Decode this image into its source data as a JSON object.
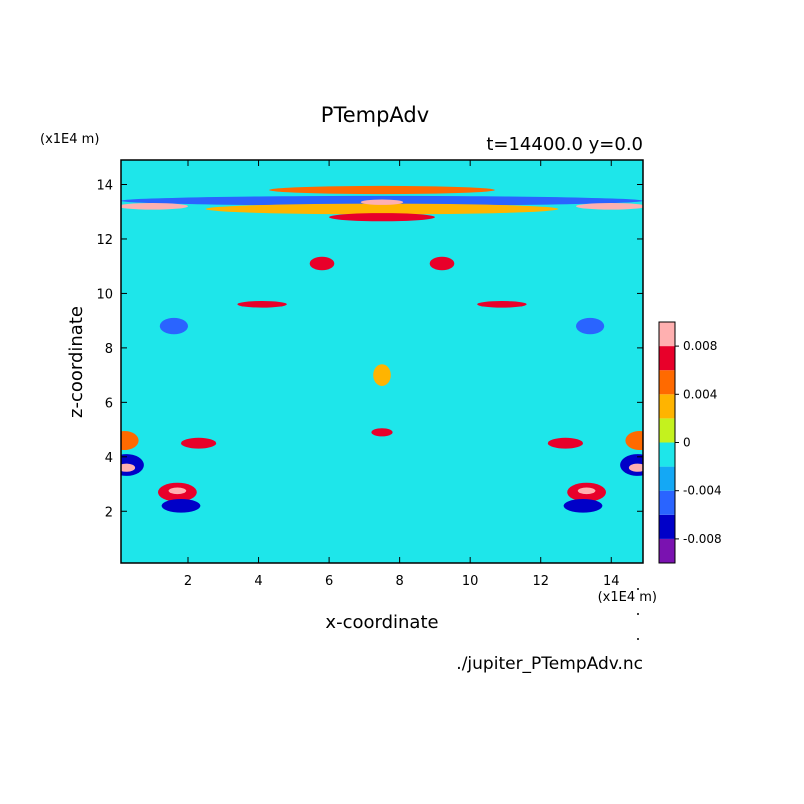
{
  "chart_data": {
    "type": "heatmap",
    "title": "PTempAdv",
    "subtitle": "t=14400.0 y=0.0",
    "xlabel": "x-coordinate",
    "ylabel": "z-coordinate",
    "x_unit": "(x1E4 m)",
    "y_unit": "(x1E4 m)",
    "xlim": [
      0.1,
      14.9
    ],
    "ylim": [
      0.1,
      14.9
    ],
    "x_ticks": [
      "2",
      "4",
      "6",
      "8",
      "10",
      "12",
      "14"
    ],
    "y_ticks": [
      "2",
      "4",
      "6",
      "8",
      "10",
      "12",
      "14"
    ],
    "colorbar": {
      "ticks": [
        "0.008",
        "0.004",
        "0",
        "-0.004",
        "-0.008"
      ],
      "tick_values": [
        0.008,
        0.004,
        0,
        -0.004,
        -0.008
      ],
      "range": [
        -0.01,
        0.01
      ],
      "levels": [
        {
          "from": -0.01,
          "to": -0.008,
          "color": "#7a12b0"
        },
        {
          "from": -0.008,
          "to": -0.006,
          "color": "#0000c8"
        },
        {
          "from": -0.006,
          "to": -0.004,
          "color": "#2a64ff"
        },
        {
          "from": -0.004,
          "to": -0.002,
          "color": "#14a8f5"
        },
        {
          "from": -0.002,
          "to": 0.0,
          "color": "#1ee6ea"
        },
        {
          "from": 0.0,
          "to": 0.002,
          "color": "#c4f21e"
        },
        {
          "from": 0.002,
          "to": 0.004,
          "color": "#ffb400"
        },
        {
          "from": 0.004,
          "to": 0.006,
          "color": "#ff6a00"
        },
        {
          "from": 0.006,
          "to": 0.008,
          "color": "#e8002a"
        },
        {
          "from": 0.008,
          "to": 0.01,
          "color": "#ffb0b0"
        }
      ]
    },
    "background_color": "#1ee6ea",
    "features": [
      {
        "x": 7.5,
        "z": 13.8,
        "rx": 3.2,
        "rz": 0.15,
        "value": 0.0045
      },
      {
        "x": 7.5,
        "z": 13.4,
        "rx": 7.4,
        "rz": 0.18,
        "value": -0.005
      },
      {
        "x": 7.5,
        "z": 13.1,
        "rx": 5.0,
        "rz": 0.2,
        "value": 0.003
      },
      {
        "x": 7.5,
        "z": 12.8,
        "rx": 1.5,
        "rz": 0.15,
        "value": 0.007
      },
      {
        "x": 7.5,
        "z": 13.35,
        "rx": 0.6,
        "rz": 0.1,
        "value": 0.009
      },
      {
        "x": 1.0,
        "z": 13.2,
        "rx": 1.0,
        "rz": 0.12,
        "value": 0.009
      },
      {
        "x": 14.0,
        "z": 13.2,
        "rx": 1.0,
        "rz": 0.12,
        "value": 0.009
      },
      {
        "x": 5.8,
        "z": 11.1,
        "rx": 0.35,
        "rz": 0.25,
        "value": 0.006
      },
      {
        "x": 9.2,
        "z": 11.1,
        "rx": 0.35,
        "rz": 0.25,
        "value": 0.006
      },
      {
        "x": 4.1,
        "z": 9.6,
        "rx": 0.7,
        "rz": 0.12,
        "value": 0.006
      },
      {
        "x": 10.9,
        "z": 9.6,
        "rx": 0.7,
        "rz": 0.12,
        "value": 0.006
      },
      {
        "x": 1.6,
        "z": 8.8,
        "rx": 0.4,
        "rz": 0.3,
        "value": -0.005
      },
      {
        "x": 13.4,
        "z": 8.8,
        "rx": 0.4,
        "rz": 0.3,
        "value": -0.005
      },
      {
        "x": 0.2,
        "z": 4.6,
        "rx": 0.4,
        "rz": 0.35,
        "value": 0.005
      },
      {
        "x": 14.8,
        "z": 4.6,
        "rx": 0.4,
        "rz": 0.35,
        "value": 0.005
      },
      {
        "x": 0.25,
        "z": 3.7,
        "rx": 0.5,
        "rz": 0.4,
        "value": -0.008
      },
      {
        "x": 14.75,
        "z": 3.7,
        "rx": 0.5,
        "rz": 0.4,
        "value": -0.008
      },
      {
        "x": 0.25,
        "z": 3.6,
        "rx": 0.25,
        "rz": 0.15,
        "value": 0.0095
      },
      {
        "x": 14.75,
        "z": 3.6,
        "rx": 0.25,
        "rz": 0.15,
        "value": 0.0095
      },
      {
        "x": 1.7,
        "z": 2.7,
        "rx": 0.55,
        "rz": 0.35,
        "value": 0.007
      },
      {
        "x": 13.3,
        "z": 2.7,
        "rx": 0.55,
        "rz": 0.35,
        "value": 0.007
      },
      {
        "x": 1.8,
        "z": 2.2,
        "rx": 0.55,
        "rz": 0.25,
        "value": -0.008
      },
      {
        "x": 13.2,
        "z": 2.2,
        "rx": 0.55,
        "rz": 0.25,
        "value": -0.008
      },
      {
        "x": 1.7,
        "z": 2.75,
        "rx": 0.25,
        "rz": 0.12,
        "value": 0.0095
      },
      {
        "x": 13.3,
        "z": 2.75,
        "rx": 0.25,
        "rz": 0.12,
        "value": 0.0095
      },
      {
        "x": 2.3,
        "z": 4.5,
        "rx": 0.5,
        "rz": 0.2,
        "value": 0.006
      },
      {
        "x": 12.7,
        "z": 4.5,
        "rx": 0.5,
        "rz": 0.2,
        "value": 0.006
      },
      {
        "x": 7.5,
        "z": 4.9,
        "rx": 0.3,
        "rz": 0.15,
        "value": 0.006
      },
      {
        "x": 7.5,
        "z": 7.0,
        "rx": 0.25,
        "rz": 0.4,
        "value": 0.003
      }
    ],
    "footer_path": "./jupiter_PTempAdv.nc"
  }
}
